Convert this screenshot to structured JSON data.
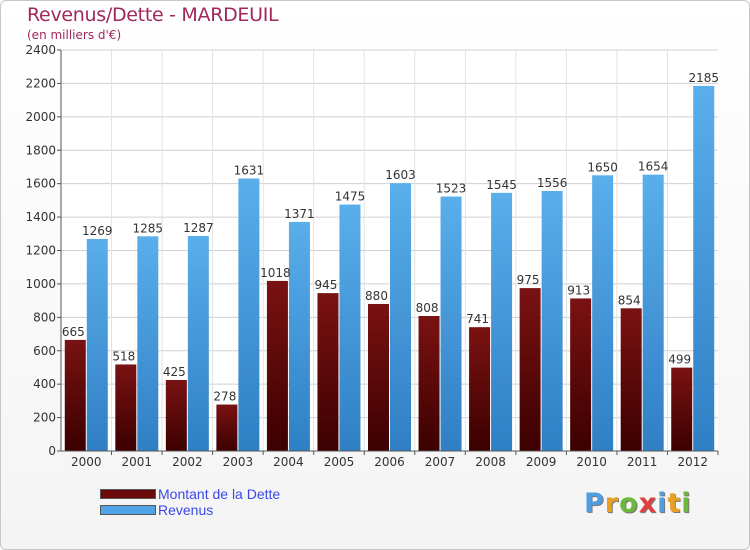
{
  "header": {
    "title": "Revenus/Dette - MARDEUIL",
    "subtitle": "(en milliers d'€)"
  },
  "chart_data": {
    "type": "bar",
    "title": "Revenus/Dette - MARDEUIL",
    "subtitle": "(en milliers d'€)",
    "categories": [
      "2000",
      "2001",
      "2002",
      "2003",
      "2004",
      "2005",
      "2006",
      "2007",
      "2008",
      "2009",
      "2010",
      "2011",
      "2012"
    ],
    "series": [
      {
        "name": "Montant de la Dette",
        "color": "#6b0a0a",
        "values": [
          665,
          518,
          425,
          278,
          1018,
          945,
          880,
          808,
          741,
          975,
          913,
          854,
          499
        ]
      },
      {
        "name": "Revenus",
        "color": "#4fa3e6",
        "values": [
          1269,
          1285,
          1287,
          1631,
          1371,
          1475,
          1603,
          1523,
          1545,
          1556,
          1650,
          1654,
          2185
        ]
      }
    ],
    "ylim": [
      0,
      2400
    ],
    "yticks": [
      0,
      200,
      400,
      600,
      800,
      1000,
      1200,
      1400,
      1600,
      1800,
      2000,
      2200,
      2400
    ],
    "grid": true,
    "legend_position": "bottom-left"
  },
  "legend": {
    "items": [
      {
        "label": "Montant de la Dette",
        "color": "#6b0a0a"
      },
      {
        "label": "Revenus",
        "color": "#4fa3e6"
      }
    ]
  },
  "logo": {
    "text": "Proxiti",
    "letters": [
      {
        "ch": "P",
        "color": "#4f9fe0"
      },
      {
        "ch": "r",
        "color": "#e8a020"
      },
      {
        "ch": "o",
        "color": "#6cb83a"
      },
      {
        "ch": "x",
        "color": "#e04040"
      },
      {
        "ch": "i",
        "color": "#4f9fe0"
      },
      {
        "ch": "t",
        "color": "#e8a020"
      },
      {
        "ch": "i",
        "color": "#6cb83a"
      }
    ]
  }
}
